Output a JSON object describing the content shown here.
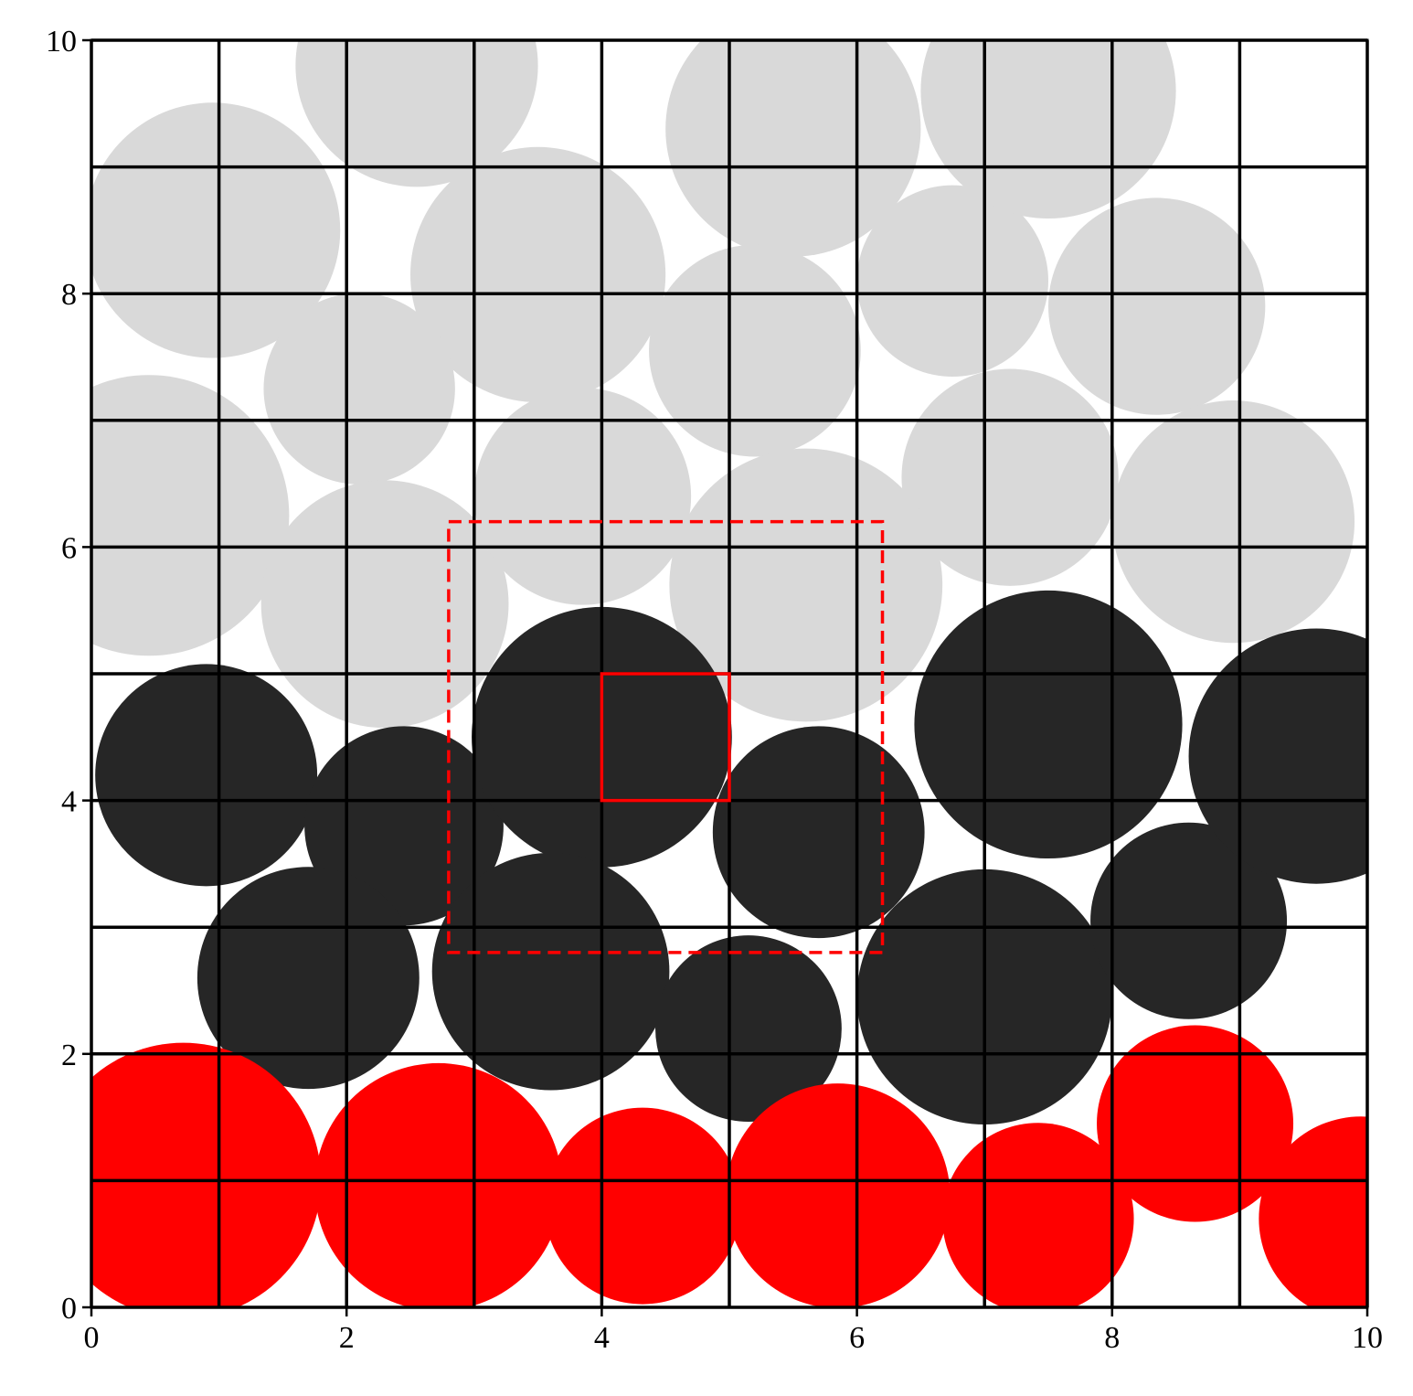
{
  "chart_data": {
    "type": "scatter",
    "xlim": [
      0,
      10
    ],
    "ylim": [
      0,
      10
    ],
    "x_ticks": [
      "0",
      "2",
      "4",
      "6",
      "8",
      "10"
    ],
    "y_ticks": [
      "0",
      "2",
      "4",
      "6",
      "8",
      "10"
    ],
    "grid": {
      "on": true,
      "spacing": 1,
      "color": "#000000"
    },
    "series": [
      {
        "color": "#d9d9d9",
        "circles": [
          {
            "x": 0.95,
            "y": 8.5,
            "r": 1.0
          },
          {
            "x": 2.55,
            "y": 9.8,
            "r": 0.95
          },
          {
            "x": 3.5,
            "y": 8.15,
            "r": 1.0
          },
          {
            "x": 2.1,
            "y": 7.25,
            "r": 0.75
          },
          {
            "x": 0.45,
            "y": 6.25,
            "r": 1.1
          },
          {
            "x": 2.3,
            "y": 5.55,
            "r": 0.97
          },
          {
            "x": 3.85,
            "y": 6.4,
            "r": 0.85
          },
          {
            "x": 5.5,
            "y": 9.3,
            "r": 1.0
          },
          {
            "x": 5.2,
            "y": 7.55,
            "r": 0.83
          },
          {
            "x": 6.75,
            "y": 8.1,
            "r": 0.75
          },
          {
            "x": 7.5,
            "y": 9.6,
            "r": 1.0
          },
          {
            "x": 8.35,
            "y": 7.9,
            "r": 0.85
          },
          {
            "x": 7.2,
            "y": 6.55,
            "r": 0.85
          },
          {
            "x": 8.95,
            "y": 6.2,
            "r": 0.95
          },
          {
            "x": 5.6,
            "y": 5.7,
            "r": 1.07
          }
        ]
      },
      {
        "color": "#262626",
        "circles": [
          {
            "x": 0.9,
            "y": 4.2,
            "r": 0.87
          },
          {
            "x": 2.45,
            "y": 3.8,
            "r": 0.78
          },
          {
            "x": 4.0,
            "y": 4.5,
            "r": 1.02
          },
          {
            "x": 1.7,
            "y": 2.6,
            "r": 0.87
          },
          {
            "x": 3.6,
            "y": 2.65,
            "r": 0.93
          },
          {
            "x": 5.7,
            "y": 3.75,
            "r": 0.83
          },
          {
            "x": 5.15,
            "y": 2.2,
            "r": 0.73
          },
          {
            "x": 7.0,
            "y": 2.45,
            "r": 1.0
          },
          {
            "x": 7.5,
            "y": 4.6,
            "r": 1.05
          },
          {
            "x": 8.6,
            "y": 3.05,
            "r": 0.77
          },
          {
            "x": 9.6,
            "y": 4.35,
            "r": 1.0
          }
        ]
      },
      {
        "color": "#ff0000",
        "circles": [
          {
            "x": 0.72,
            "y": 1.0,
            "r": 1.08
          },
          {
            "x": 2.72,
            "y": 0.95,
            "r": 0.97
          },
          {
            "x": 4.32,
            "y": 0.8,
            "r": 0.77
          },
          {
            "x": 5.85,
            "y": 0.88,
            "r": 0.88
          },
          {
            "x": 7.42,
            "y": 0.7,
            "r": 0.75
          },
          {
            "x": 8.65,
            "y": 1.45,
            "r": 0.77
          },
          {
            "x": 9.95,
            "y": 0.7,
            "r": 0.8
          }
        ]
      }
    ],
    "annotations": [
      {
        "kind": "rect",
        "style": "solid",
        "color": "#ff0000",
        "x0": 4.0,
        "y0": 4.0,
        "x1": 5.0,
        "y1": 5.0
      },
      {
        "kind": "rect",
        "style": "dashed",
        "color": "#ff0000",
        "x0": 2.8,
        "y0": 2.8,
        "x1": 6.2,
        "y1": 6.2
      }
    ]
  }
}
